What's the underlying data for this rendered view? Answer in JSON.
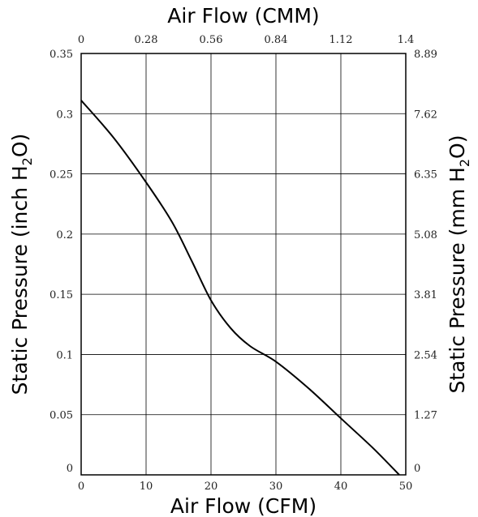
{
  "chart_data": {
    "type": "line",
    "xlabel": "Air Flow (CFM)",
    "x2label": "Air Flow (CMM)",
    "ylabel_left": {
      "text": "Static Pressure (inch H",
      "sub": "2",
      "end": "O)"
    },
    "ylabel_right": {
      "text": "Static Pressure (mm H",
      "sub": "2",
      "end": "O)"
    },
    "xlim": [
      0,
      50
    ],
    "ylim": [
      0,
      0.35
    ],
    "grid": true,
    "x_ticks": [
      "0",
      "10",
      "20",
      "30",
      "40",
      "50"
    ],
    "x2_ticks": [
      "0",
      "0.28",
      "0.56",
      "0.84",
      "1.12",
      "1.4"
    ],
    "y_ticks": [
      "0",
      "0.05",
      "0.1",
      "0.15",
      "0.2",
      "0.25",
      "0.3",
      "0.35"
    ],
    "y2_ticks": [
      "0",
      "1.27",
      "2.54",
      "3.81",
      "5.08",
      "6.35",
      "7.62",
      "8.89"
    ],
    "series": [
      {
        "x": [
          0,
          5,
          10,
          14,
          17,
          20,
          23,
          26,
          30,
          35,
          40,
          45,
          49
        ],
        "y": [
          0.311,
          0.28,
          0.243,
          0.21,
          0.178,
          0.145,
          0.122,
          0.107,
          0.094,
          0.072,
          0.047,
          0.022,
          0.0
        ]
      }
    ]
  }
}
